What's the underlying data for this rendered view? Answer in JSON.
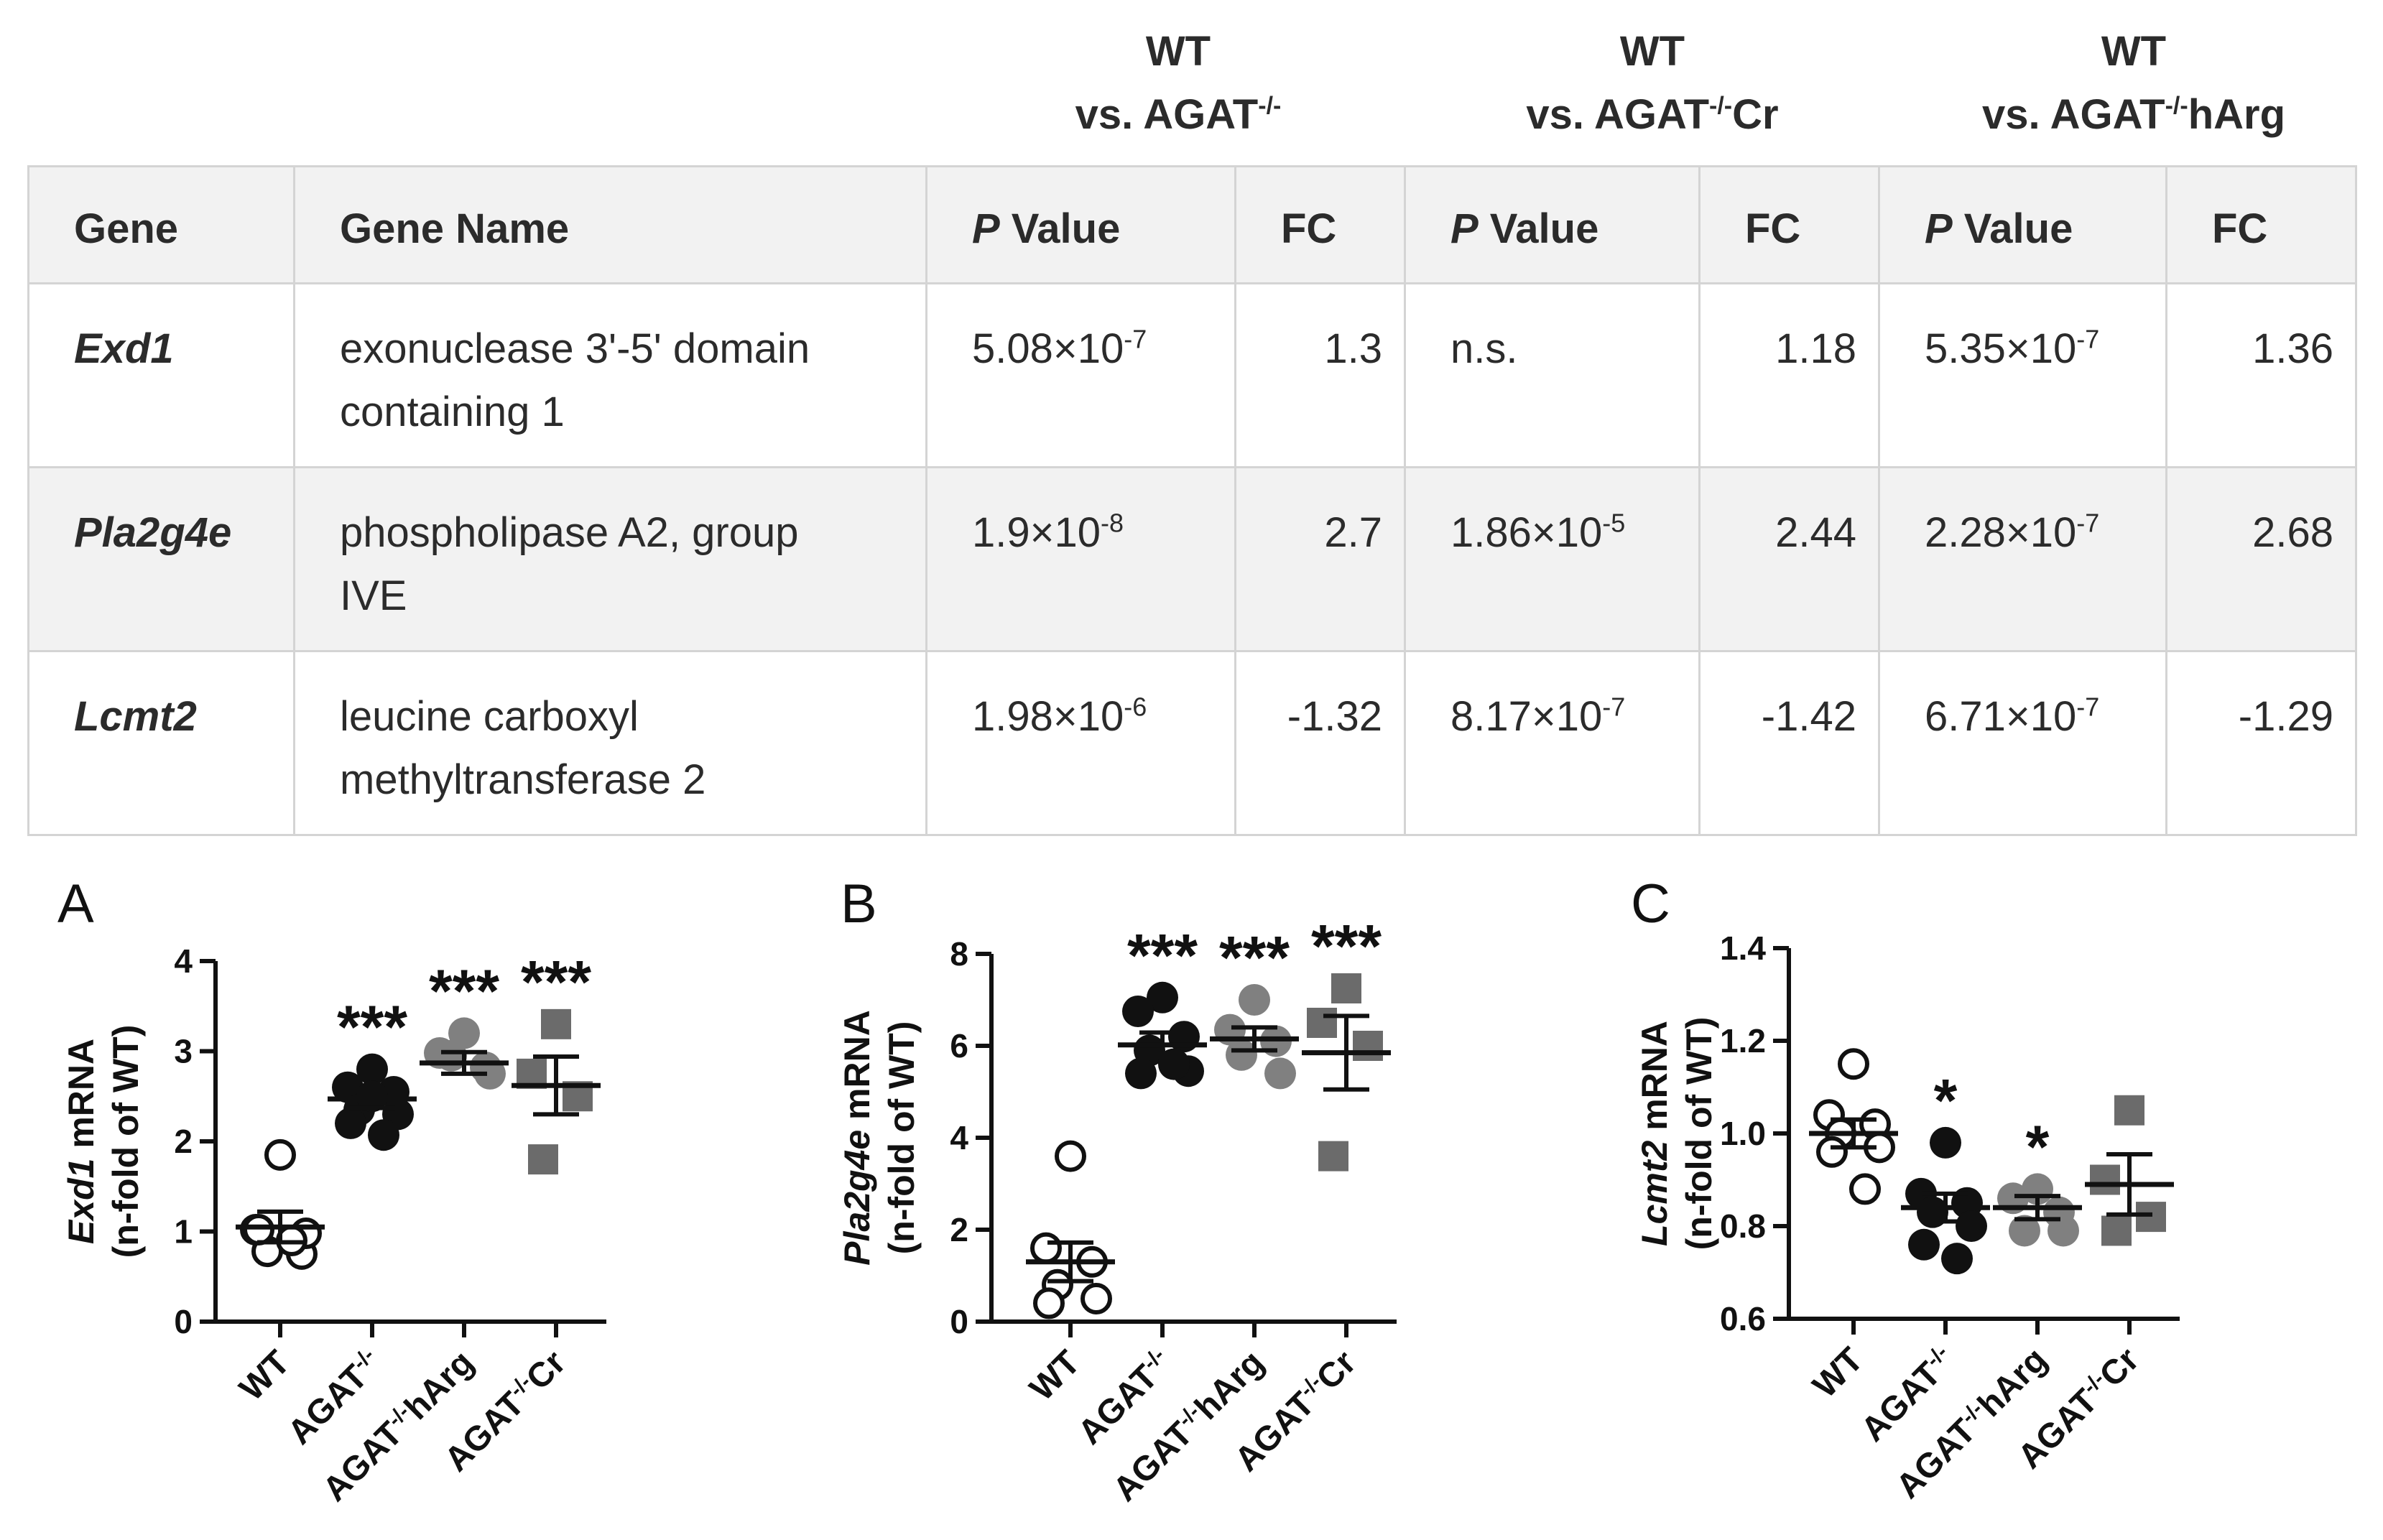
{
  "table": {
    "comparisons": [
      {
        "line1": "WT",
        "line2": "vs. AGAT",
        "sup": "-/-",
        "suffix": ""
      },
      {
        "line1": "WT",
        "line2": "vs. AGAT",
        "sup": "-/-",
        "suffix": "Cr"
      },
      {
        "line1": "WT",
        "line2": "vs. AGAT",
        "sup": "-/-",
        "suffix": "hArg"
      }
    ],
    "headers": {
      "gene": "Gene",
      "gene_name": "Gene Name",
      "p_italic": "P",
      "p_rest": " Value",
      "fc": "FC"
    },
    "rows": [
      {
        "gene": "Exd1",
        "name_line1": "exonuclease 3'-5' domain",
        "name_line2": "containing 1",
        "cells": [
          {
            "p_base": "5.08×10",
            "p_exp": "-7",
            "fc": "1.3"
          },
          {
            "p_base": "n.s.",
            "p_exp": "",
            "fc": "1.18"
          },
          {
            "p_base": "5.35×10",
            "p_exp": "-7",
            "fc": "1.36"
          }
        ]
      },
      {
        "gene": "Pla2g4e",
        "name_line1": "phospholipase A2, group",
        "name_line2": "IVE",
        "cells": [
          {
            "p_base": "1.9×10",
            "p_exp": "-8",
            "fc": "2.7"
          },
          {
            "p_base": "1.86×10",
            "p_exp": "-5",
            "fc": "2.44"
          },
          {
            "p_base": "2.28×10",
            "p_exp": "-7",
            "fc": "2.68"
          }
        ]
      },
      {
        "gene": "Lcmt2",
        "name_line1": "leucine carboxyl",
        "name_line2": "methyltransferase 2",
        "cells": [
          {
            "p_base": "1.98×10",
            "p_exp": "-6",
            "fc": "-1.32"
          },
          {
            "p_base": "8.17×10",
            "p_exp": "-7",
            "fc": "-1.42"
          },
          {
            "p_base": "6.71×10",
            "p_exp": "-7",
            "fc": "-1.29"
          }
        ]
      }
    ]
  },
  "chart_data": [
    {
      "type": "scatter",
      "panel": "A",
      "ylabel_gene": "Exd1",
      "ylabel_rest": " mRNA",
      "ylabel_line2": "(n-fold of WT)",
      "ylim": [
        0,
        4
      ],
      "yticks": [
        "0",
        "1",
        "2",
        "3",
        "4"
      ],
      "categories": [
        {
          "base": "WT",
          "sup": "",
          "suffix": ""
        },
        {
          "base": "AGAT",
          "sup": "-/-",
          "suffix": ""
        },
        {
          "base": "AGAT",
          "sup": "-/-",
          "suffix": "hArg"
        },
        {
          "base": "AGAT",
          "sup": "-/-",
          "suffix": "Cr"
        }
      ],
      "series": [
        {
          "name": "WT",
          "marker": "open-circle",
          "color": "#111111",
          "mean": 1.05,
          "sem": 0.17,
          "sig": "",
          "points": [
            1.85,
            1.02,
            0.75,
            0.78,
            0.98,
            1.02,
            0.9
          ]
        },
        {
          "name": "AGAT-/-",
          "marker": "filled-circle",
          "color": "#111111",
          "mean": 2.47,
          "sem": 0.1,
          "sig": "***",
          "points": [
            2.8,
            2.6,
            2.55,
            2.35,
            2.3,
            2.2,
            2.07,
            2.5
          ]
        },
        {
          "name": "AGAT-/-hArg",
          "marker": "filled-circle",
          "color": "#808080",
          "mean": 2.87,
          "sem": 0.12,
          "sig": "***",
          "points": [
            3.2,
            2.98,
            2.82,
            2.95,
            2.75
          ]
        },
        {
          "name": "AGAT-/-Cr",
          "marker": "square",
          "color": "#6b6b6b",
          "mean": 2.62,
          "sem": 0.32,
          "sig": "***",
          "points": [
            3.3,
            2.75,
            2.5,
            1.8
          ]
        }
      ]
    },
    {
      "type": "scatter",
      "panel": "B",
      "ylabel_gene": "Pla2g4e",
      "ylabel_rest": " mRNA",
      "ylabel_line2": "(n-fold of WT)",
      "ylim": [
        0,
        8
      ],
      "yticks": [
        "0",
        "2",
        "4",
        "6",
        "8"
      ],
      "categories": [
        {
          "base": "WT",
          "sup": "",
          "suffix": ""
        },
        {
          "base": "AGAT",
          "sup": "-/-",
          "suffix": ""
        },
        {
          "base": "AGAT",
          "sup": "-/-",
          "suffix": "hArg"
        },
        {
          "base": "AGAT",
          "sup": "-/-",
          "suffix": "Cr"
        }
      ],
      "series": [
        {
          "name": "WT",
          "marker": "open-circle",
          "color": "#111111",
          "mean": 1.3,
          "sem": 0.42,
          "sig": "",
          "points": [
            3.6,
            1.6,
            1.3,
            0.8,
            0.5,
            0.4
          ]
        },
        {
          "name": "AGAT-/-",
          "marker": "filled-circle",
          "color": "#111111",
          "mean": 6.02,
          "sem": 0.27,
          "sig": "***",
          "points": [
            7.05,
            6.75,
            6.2,
            5.9,
            5.45,
            5.4,
            5.6
          ]
        },
        {
          "name": "AGAT-/-hArg",
          "marker": "filled-circle",
          "color": "#808080",
          "mean": 6.15,
          "sem": 0.25,
          "sig": "***",
          "points": [
            7.0,
            6.35,
            6.1,
            5.8,
            5.4
          ]
        },
        {
          "name": "AGAT-/-Cr",
          "marker": "square",
          "color": "#6b6b6b",
          "mean": 5.85,
          "sem": 0.8,
          "sig": "***",
          "points": [
            7.25,
            6.5,
            6.0,
            3.6
          ]
        }
      ]
    },
    {
      "type": "scatter",
      "panel": "C",
      "ylabel_gene": "Lcmt2",
      "ylabel_rest": " mRNA",
      "ylabel_line2": "(n-fold of WT)",
      "ylim": [
        0.6,
        1.4
      ],
      "yticks": [
        "0.6",
        "0.8",
        "1.0",
        "1.2",
        "1.4"
      ],
      "categories": [
        {
          "base": "WT",
          "sup": "",
          "suffix": ""
        },
        {
          "base": "AGAT",
          "sup": "-/-",
          "suffix": ""
        },
        {
          "base": "AGAT",
          "sup": "-/-",
          "suffix": "hArg"
        },
        {
          "base": "AGAT",
          "sup": "-/-",
          "suffix": "Cr"
        }
      ],
      "series": [
        {
          "name": "WT",
          "marker": "open-circle",
          "color": "#111111",
          "mean": 1.0,
          "sem": 0.03,
          "sig": "",
          "points": [
            1.15,
            1.04,
            1.02,
            1.0,
            0.97,
            0.96,
            0.88
          ]
        },
        {
          "name": "AGAT-/-",
          "marker": "filled-circle",
          "color": "#111111",
          "mean": 0.84,
          "sem": 0.03,
          "sig": "*",
          "points": [
            0.98,
            0.87,
            0.85,
            0.83,
            0.8,
            0.76,
            0.73
          ]
        },
        {
          "name": "AGAT-/-hArg",
          "marker": "filled-circle",
          "color": "#808080",
          "mean": 0.84,
          "sem": 0.025,
          "sig": "*",
          "points": [
            0.88,
            0.86,
            0.83,
            0.79,
            0.79
          ]
        },
        {
          "name": "AGAT-/-Cr",
          "marker": "square",
          "color": "#6b6b6b",
          "mean": 0.89,
          "sem": 0.065,
          "sig": "",
          "points": [
            1.05,
            0.9,
            0.82,
            0.79
          ]
        }
      ]
    }
  ]
}
